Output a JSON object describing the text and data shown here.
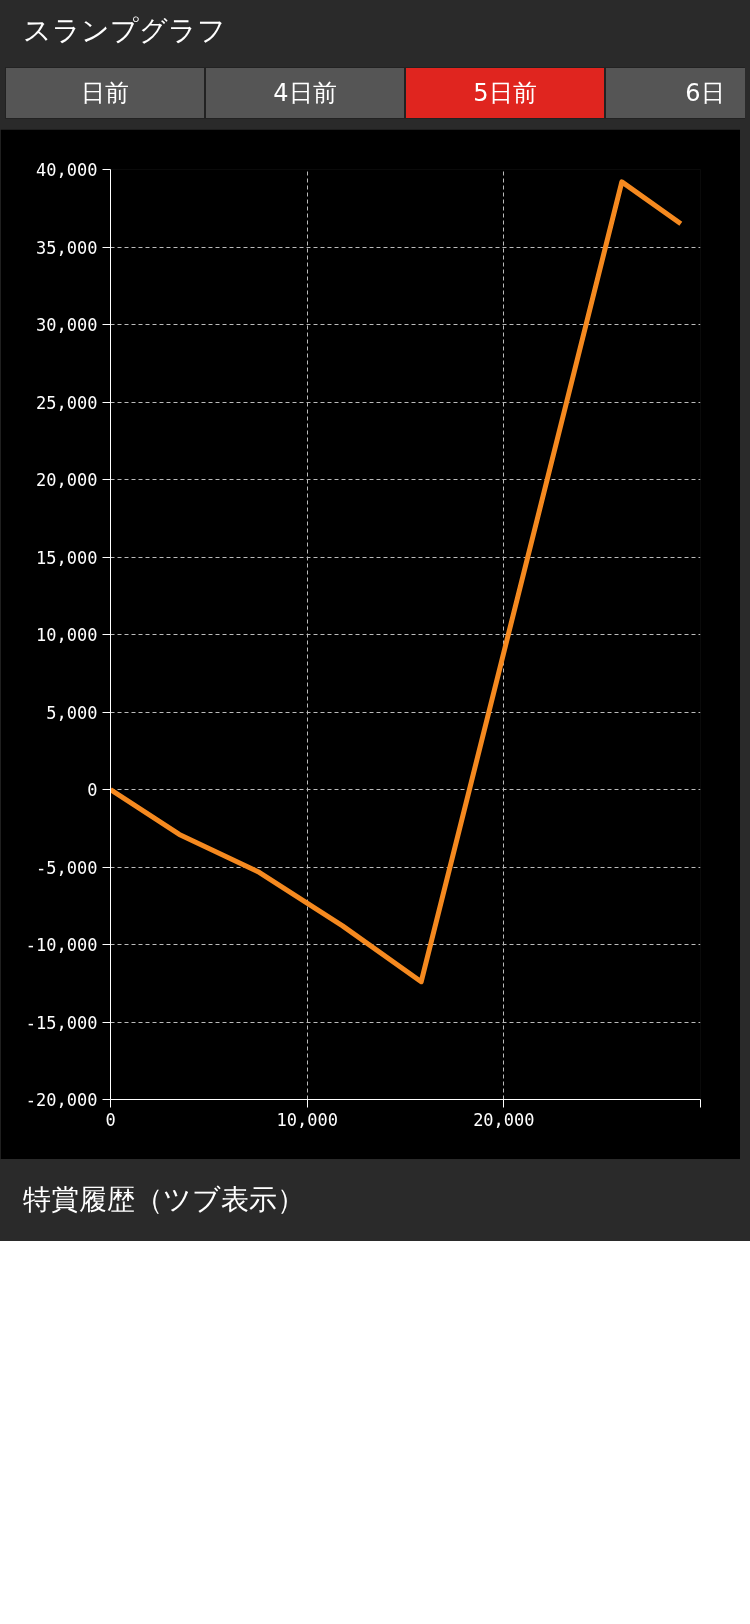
{
  "chart_data": {
    "type": "line",
    "title": "スランプグラフ",
    "annotations": [
      "日前",
      "4日前",
      "5日前",
      "6日",
      "特賞履歴（ツブ表示）"
    ],
    "x": [
      0,
      3500,
      7500,
      11800,
      15800,
      26000,
      29000
    ],
    "series": [
      {
        "color": "#f5891f",
        "values": [
          0,
          -2900,
          -5300,
          -8800,
          -12400,
          39200,
          36500
        ]
      }
    ],
    "xlim": [
      0,
      30000
    ],
    "xticks": [
      0,
      {
        "value": 10000,
        "label": "10,000"
      },
      {
        "value": 20000,
        "label": "20,000"
      },
      {
        "value": 30000,
        "label": null
      }
    ],
    "ylim": [
      -20000,
      40000
    ],
    "yticks": [
      {
        "value": -20000,
        "label": "-20,000"
      },
      {
        "value": -15000,
        "label": "-15,000"
      },
      {
        "value": -10000,
        "label": "-10,000"
      },
      {
        "value": -5000,
        "label": "-5,000"
      },
      0,
      {
        "value": 5000,
        "label": "5,000"
      },
      {
        "value": 10000,
        "label": "10,000"
      },
      {
        "value": 15000,
        "label": "15,000"
      },
      {
        "value": 20000,
        "label": "20,000"
      },
      {
        "value": 25000,
        "label": "25,000"
      },
      {
        "value": 30000,
        "label": "30,000"
      },
      {
        "value": 35000,
        "label": "35,000"
      },
      {
        "value": 40000,
        "label": "40,000"
      }
    ],
    "grid": true,
    "line_style": "solid",
    "marker": "none"
  }
}
